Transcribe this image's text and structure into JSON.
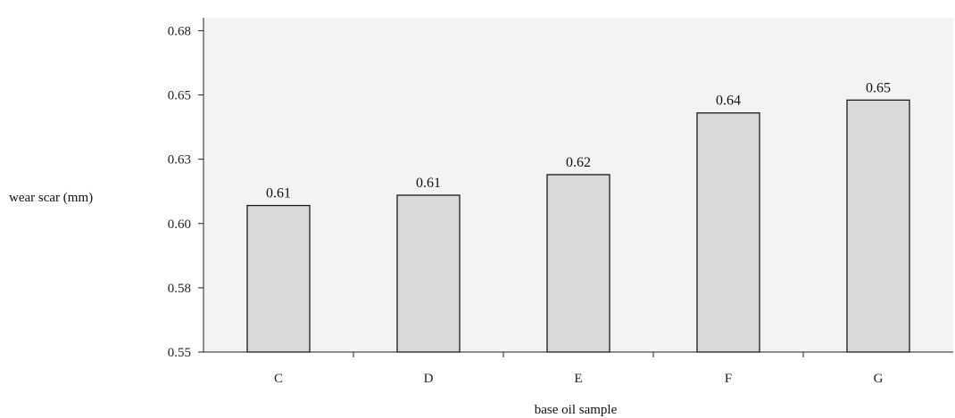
{
  "chart_data": {
    "type": "bar",
    "title": "",
    "xlabel": "base oil sample",
    "ylabel": "wear scar (mm)",
    "categories": [
      "C",
      "D",
      "E",
      "F",
      "G"
    ],
    "values": [
      0.607,
      0.611,
      0.619,
      0.643,
      0.648
    ],
    "data_labels": [
      "0.61",
      "0.61",
      "0.62",
      "0.64",
      "0.65"
    ],
    "ylim": [
      0.55,
      0.68
    ],
    "yticks": [
      0.55,
      0.575,
      0.6,
      0.625,
      0.65,
      0.675
    ],
    "ytick_labels": [
      "0.55",
      "0.58",
      "0.60",
      "0.63",
      "0.65",
      "0.68"
    ],
    "grid": false,
    "legend": "none",
    "colors": {
      "plot_background": "#f3f3f3",
      "bar_fill": "#dadada",
      "bar_stroke": "#1a1a1a",
      "axis": "#222222"
    }
  }
}
